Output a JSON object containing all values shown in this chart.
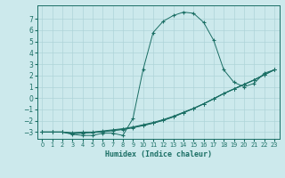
{
  "xlabel": "Humidex (Indice chaleur)",
  "ylabel": "",
  "background_color": "#cce9ec",
  "grid_color": "#aed4d8",
  "line_color": "#1a6e64",
  "xlim": [
    -0.5,
    23.5
  ],
  "ylim": [
    -3.6,
    8.2
  ],
  "xticks": [
    0,
    1,
    2,
    3,
    4,
    5,
    6,
    7,
    8,
    9,
    10,
    11,
    12,
    13,
    14,
    15,
    16,
    17,
    18,
    19,
    20,
    21,
    22,
    23
  ],
  "yticks": [
    -3,
    -2,
    -1,
    0,
    1,
    2,
    3,
    4,
    5,
    6,
    7
  ],
  "curve1_x": [
    0,
    1,
    2,
    3,
    4,
    5,
    6,
    7,
    8,
    9,
    10,
    11,
    12,
    13,
    14,
    15,
    16,
    17,
    18,
    19,
    20,
    21,
    22,
    23
  ],
  "curve1_y": [
    -3.0,
    -3.0,
    -3.0,
    -3.2,
    -3.3,
    -3.3,
    -3.1,
    -3.1,
    -3.3,
    -1.8,
    2.5,
    5.8,
    6.8,
    7.3,
    7.6,
    7.5,
    6.7,
    5.1,
    2.5,
    1.4,
    1.0,
    1.3,
    2.2,
    2.5
  ],
  "curve2_x": [
    0,
    1,
    2,
    3,
    4,
    5,
    6,
    7,
    8,
    9,
    10,
    11,
    12,
    13,
    14,
    15,
    16,
    17,
    18,
    19,
    20,
    21,
    22,
    23
  ],
  "curve2_y": [
    -3.0,
    -3.0,
    -3.0,
    -3.05,
    -3.0,
    -3.0,
    -2.9,
    -2.8,
    -2.7,
    -2.55,
    -2.35,
    -2.15,
    -1.9,
    -1.6,
    -1.25,
    -0.9,
    -0.5,
    -0.05,
    0.4,
    0.8,
    1.2,
    1.6,
    2.05,
    2.5
  ],
  "curve3_x": [
    0,
    1,
    2,
    3,
    4,
    5,
    6,
    7,
    8,
    9,
    10,
    11,
    12,
    13,
    14,
    15,
    16,
    17,
    18,
    19,
    20,
    21,
    22,
    23
  ],
  "curve3_y": [
    -3.0,
    -3.0,
    -3.0,
    -3.1,
    -3.05,
    -3.02,
    -2.95,
    -2.85,
    -2.75,
    -2.6,
    -2.42,
    -2.2,
    -1.96,
    -1.65,
    -1.28,
    -0.92,
    -0.5,
    -0.05,
    0.42,
    0.82,
    1.22,
    1.62,
    2.07,
    2.5
  ],
  "curve4_x": [
    0,
    1,
    2,
    3,
    4,
    5,
    6,
    7,
    8,
    9,
    10,
    11,
    12,
    13,
    14,
    15,
    16,
    17,
    18,
    19,
    20,
    21,
    22,
    23
  ],
  "curve4_y": [
    -3.0,
    -3.0,
    -3.0,
    -3.15,
    -3.1,
    -3.05,
    -2.98,
    -2.88,
    -2.78,
    -2.62,
    -2.43,
    -2.22,
    -1.97,
    -1.67,
    -1.3,
    -0.93,
    -0.52,
    -0.07,
    0.4,
    0.8,
    1.2,
    1.6,
    2.05,
    2.5
  ]
}
